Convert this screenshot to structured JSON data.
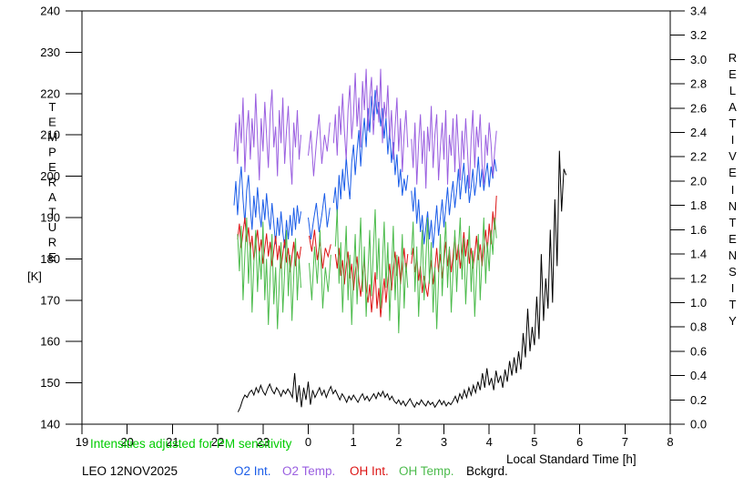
{
  "chart_data": {
    "type": "line",
    "title": "",
    "grid": false,
    "x_axis": {
      "label": "Local Standard Time [h]",
      "range": [
        19,
        32
      ],
      "tick_hours": [
        19,
        20,
        21,
        22,
        23,
        24,
        25,
        26,
        27,
        28,
        29,
        30,
        31,
        32
      ],
      "tick_labels": [
        "19",
        "20",
        "21",
        "22",
        "23",
        "0",
        "1",
        "2",
        "3",
        "4",
        "5",
        "6",
        "7",
        "8"
      ]
    },
    "y_left_axis": {
      "title": "TEMPERATURE",
      "unit": "[K]",
      "range": [
        140,
        240
      ],
      "tick_values": [
        140,
        150,
        160,
        170,
        180,
        190,
        200,
        210,
        220,
        230,
        240
      ]
    },
    "y_right_axis": {
      "title_words": [
        "RELATIVE",
        "INTENSITY"
      ],
      "range": [
        0,
        3.4
      ],
      "tick_labels": [
        "0.0",
        "0.2",
        "0.4",
        "0.6",
        "0.8",
        "1.0",
        "1.2",
        "1.4",
        "1.6",
        "1.8",
        "2.0",
        "2.2",
        "2.4",
        "2.6",
        "2.8",
        "3.0",
        "3.2",
        "3.4"
      ]
    },
    "series": [
      {
        "name": "O2 Int.",
        "axis": "right",
        "color": "#1a5ce8",
        "segments": [
          {
            "x0": 22.36,
            "dx": 0.04,
            "y": [
              1.8,
              2.0,
              1.72,
              1.95,
              2.12,
              1.85,
              1.65,
              1.92,
              2.05,
              1.78,
              1.6,
              1.88,
              1.7,
              1.95,
              1.75,
              1.62,
              1.85,
              1.68,
              1.9,
              1.72,
              1.6,
              1.82,
              1.65,
              1.48,
              1.7,
              1.55,
              1.75,
              1.58,
              1.45,
              1.68,
              1.52,
              1.72,
              1.55,
              1.78,
              1.6,
              1.8,
              1.65,
              1.75
            ]
          },
          {
            "x0": 24.0,
            "dx": 0.06,
            "y": [
              1.7,
              1.52,
              1.68,
              1.82,
              1.58,
              1.72,
              1.9,
              1.62,
              1.78
            ]
          },
          {
            "x0": 24.56,
            "dx": 0.04,
            "y": [
              1.82,
              1.95,
              1.72,
              2.05,
              1.85,
              2.1,
              1.92,
              2.2,
              2.0,
              1.85,
              2.15,
              2.3,
              2.05,
              2.25,
              2.42,
              2.12,
              2.35,
              2.52,
              2.28,
              2.6,
              2.4,
              2.7,
              2.5,
              2.75,
              2.55,
              2.65,
              2.45,
              2.6,
              2.35,
              2.52,
              2.22,
              2.42,
              2.15,
              2.32,
              2.05,
              2.22,
              1.95,
              2.1,
              1.88,
              2.02,
              1.92,
              2.05
            ]
          },
          {
            "x0": 26.28,
            "dx": 0.04,
            "y": [
              1.92,
              1.75,
              1.95,
              1.65,
              1.85,
              1.58,
              1.72,
              1.48,
              1.62,
              1.75,
              1.52,
              1.68,
              1.45,
              1.62,
              1.8,
              1.55,
              1.7,
              1.85,
              1.62,
              1.78,
              1.95,
              1.72,
              1.88,
              2.0,
              1.78,
              1.92,
              2.1,
              1.85,
              2.02,
              2.15,
              1.9,
              2.05,
              1.82,
              1.95,
              2.1,
              1.88,
              2.0,
              2.2,
              1.95,
              2.1,
              1.92,
              2.05,
              2.15,
              1.95,
              2.12,
              2.02,
              2.18,
              2.08
            ]
          }
        ]
      },
      {
        "name": "O2 Temp.",
        "axis": "left",
        "color": "#9a5fe0",
        "segments": [
          {
            "x0": 22.36,
            "dx": 0.04,
            "y": [
              206,
              213,
              203,
              215,
              208,
              219,
              201,
              211,
              216,
              204,
              214,
              207,
              220,
              209,
              199,
              214,
              206,
              218,
              210,
              202,
              215,
              221,
              207,
              212,
              200,
              216,
              208,
              219,
              203,
              211,
              217,
              205,
              198,
              213,
              207,
              216,
              204,
              210
            ]
          },
          {
            "x0": 24.0,
            "dx": 0.06,
            "y": [
              205,
              211,
              200,
              208,
              215,
              203,
              210,
              206,
              213
            ]
          },
          {
            "x0": 24.56,
            "dx": 0.04,
            "y": [
              208,
              215,
              205,
              217,
              210,
              220,
              211,
              204,
              216,
              222,
              209,
              215,
              225,
              212,
              219,
              207,
              223,
              216,
              226,
              211,
              219,
              224,
              210,
              217,
              222,
              213,
              226,
              208,
              218,
              214,
              222,
              209,
              216,
              204,
              212,
              219,
              206,
              214,
              201,
              210,
              216,
              207
            ]
          },
          {
            "x0": 26.28,
            "dx": 0.04,
            "y": [
              209,
              202,
              213,
              198,
              208,
              215,
              203,
              211,
              197,
              212,
              206,
              217,
              202,
              210,
              215,
              199,
              207,
              213,
              204,
              216,
              198,
              210,
              205,
              214,
              201,
              215,
              207,
              199,
              211,
              204,
              214,
              206,
              197,
              209,
              216,
              202,
              212,
              207,
              215,
              203,
              198,
              210,
              205,
              213,
              208,
              200,
              206,
              211
            ]
          }
        ]
      },
      {
        "name": "OH Int.",
        "axis": "right",
        "color": "#dc1414",
        "segments": [
          {
            "x0": 22.44,
            "dx": 0.04,
            "y": [
              1.52,
              1.65,
              1.45,
              1.58,
              1.7,
              1.5,
              1.62,
              1.42,
              1.55,
              1.35,
              1.48,
              1.6,
              1.4,
              1.52,
              1.32,
              1.45,
              1.57,
              1.38,
              1.5,
              1.3,
              1.43,
              1.55,
              1.35,
              1.47,
              1.28,
              1.4,
              1.52,
              1.33,
              1.45,
              1.25,
              1.38,
              1.5,
              1.3,
              1.42,
              1.35,
              1.46
            ]
          },
          {
            "x0": 24.02,
            "dx": 0.06,
            "y": [
              1.55,
              1.42,
              1.6,
              1.35,
              1.5,
              1.28,
              1.45,
              1.38,
              1.48
            ]
          },
          {
            "x0": 24.6,
            "dx": 0.04,
            "y": [
              1.4,
              1.28,
              1.45,
              1.22,
              1.35,
              1.15,
              1.3,
              1.42,
              1.2,
              1.32,
              1.1,
              1.25,
              1.38,
              1.18,
              1.05,
              1.22,
              1.35,
              1.12,
              1.0,
              1.15,
              0.92,
              1.08,
              1.25,
              0.95,
              1.12,
              0.88,
              1.05,
              1.2,
              1.0,
              1.18,
              1.32,
              1.1,
              1.28,
              1.42,
              1.22,
              1.38,
              1.15,
              1.3,
              1.45,
              1.25,
              1.4
            ]
          },
          {
            "x0": 26.28,
            "dx": 0.04,
            "y": [
              1.32,
              1.45,
              1.25,
              1.38,
              1.18,
              1.3,
              1.08,
              1.22,
              1.12,
              1.05,
              1.2,
              1.35,
              1.15,
              1.28,
              1.45,
              1.25,
              1.4,
              1.2,
              1.35,
              1.5,
              1.3,
              1.45,
              1.25,
              1.38,
              1.55,
              1.35,
              1.48,
              1.28,
              1.42,
              1.58,
              1.38,
              1.52,
              1.32,
              1.45,
              1.28,
              1.4,
              1.55,
              1.35,
              1.48,
              1.3,
              1.44,
              1.6,
              1.42,
              1.65,
              1.48,
              1.75,
              1.6,
              1.88
            ]
          }
        ]
      },
      {
        "name": "OH Temp.",
        "axis": "left",
        "color": "#4cbb4c",
        "segments": [
          {
            "x0": 22.44,
            "dx": 0.04,
            "y": [
              186,
              177,
              188,
              170,
              181,
              190,
              174,
              184,
              167,
              179,
              187,
              172,
              182,
              175,
              189,
              170,
              180,
              164,
              176,
              186,
              169,
              178,
              163,
              174,
              184,
              167,
              177,
              187,
              171,
              181,
              165,
              176,
              185,
              170,
              180,
              173
            ]
          },
          {
            "x0": 24.02,
            "dx": 0.06,
            "y": [
              179,
              170,
              183,
              174,
              187,
              168,
              178,
              172,
              181
            ]
          },
          {
            "x0": 24.6,
            "dx": 0.04,
            "y": [
              183,
              192,
              174,
              184,
              167,
              178,
              188,
              170,
              181,
              164,
              176,
              186,
              169,
              180,
              190,
              172,
              183,
              166,
              177,
              187,
              171,
              182,
              192,
              175,
              185,
              168,
              179,
              189,
              173,
              184,
              165,
              177,
              188,
              170,
              181,
              162,
              175,
              186,
              168,
              179,
              173
            ]
          },
          {
            "x0": 26.28,
            "dx": 0.04,
            "y": [
              181,
              189,
              172,
              183,
              166,
              177,
              187,
              170,
              180,
              190,
              174,
              184,
              167,
              178,
              163,
              175,
              186,
              171,
              181,
              189,
              173,
              183,
              167,
              177,
              187,
              172,
              182,
              190,
              175,
              185,
              169,
              179,
              188,
              172,
              182,
              166,
              176,
              186,
              170,
              180,
              190,
              174,
              184,
              177,
              187,
              181,
              190,
              185
            ]
          }
        ]
      },
      {
        "name": "Bckgrd.",
        "axis": "right",
        "color": "#000000",
        "segments": [
          {
            "x0": 22.45,
            "dx": 0.05,
            "y": [
              0.1,
              0.14,
              0.2,
              0.24,
              0.22,
              0.26,
              0.28,
              0.24,
              0.3,
              0.26,
              0.32,
              0.27,
              0.24,
              0.29,
              0.33,
              0.28,
              0.25,
              0.3,
              0.27,
              0.23,
              0.28,
              0.25,
              0.29,
              0.26,
              0.22,
              0.42,
              0.18,
              0.32,
              0.14,
              0.3,
              0.2,
              0.35,
              0.16,
              0.28,
              0.22,
              0.26,
              0.3,
              0.24,
              0.28,
              0.22,
              0.27,
              0.31,
              0.25,
              0.28,
              0.24,
              0.2,
              0.25,
              0.22,
              0.18,
              0.23,
              0.2,
              0.24,
              0.21,
              0.18,
              0.22,
              0.25,
              0.2,
              0.23,
              0.19,
              0.22,
              0.25,
              0.21,
              0.26,
              0.23,
              0.27,
              0.22,
              0.25,
              0.2,
              0.23,
              0.19,
              0.17,
              0.2,
              0.16,
              0.19,
              0.15,
              0.18,
              0.21,
              0.17,
              0.14,
              0.18,
              0.16,
              0.2,
              0.17,
              0.15,
              0.19,
              0.16,
              0.18,
              0.14,
              0.17,
              0.2,
              0.16,
              0.19,
              0.15,
              0.18,
              0.16,
              0.19,
              0.23,
              0.18,
              0.25,
              0.21,
              0.28,
              0.22,
              0.3,
              0.24,
              0.32,
              0.26,
              0.35,
              0.28,
              0.42,
              0.3,
              0.46,
              0.32,
              0.38,
              0.28,
              0.44,
              0.34,
              0.4,
              0.3,
              0.45,
              0.35,
              0.52,
              0.4,
              0.55,
              0.42,
              0.6,
              0.45,
              0.75,
              0.55,
              0.95,
              0.6,
              0.8,
              0.65,
              1.05,
              0.7,
              1.4,
              0.85,
              1.2,
              0.95,
              1.6,
              1.0,
              1.85,
              1.3,
              2.25,
              1.75,
              2.1,
              2.05
            ]
          }
        ]
      }
    ]
  },
  "annotations": {
    "note": {
      "text": "Intensities adjusted for PM sensitivity",
      "color": "#00cc00"
    },
    "station_label": {
      "text": "LEO 12NOV2025",
      "color": "#000000"
    },
    "legend_items": [
      {
        "label": "O2 Int.",
        "color": "#1a5ce8"
      },
      {
        "label": "O2 Temp.",
        "color": "#9a5fe0"
      },
      {
        "label": "OH Int.",
        "color": "#dc1414"
      },
      {
        "label": "OH Temp.",
        "color": "#4cbb4c"
      },
      {
        "label": "Bckgrd.",
        "color": "#000000"
      }
    ]
  }
}
